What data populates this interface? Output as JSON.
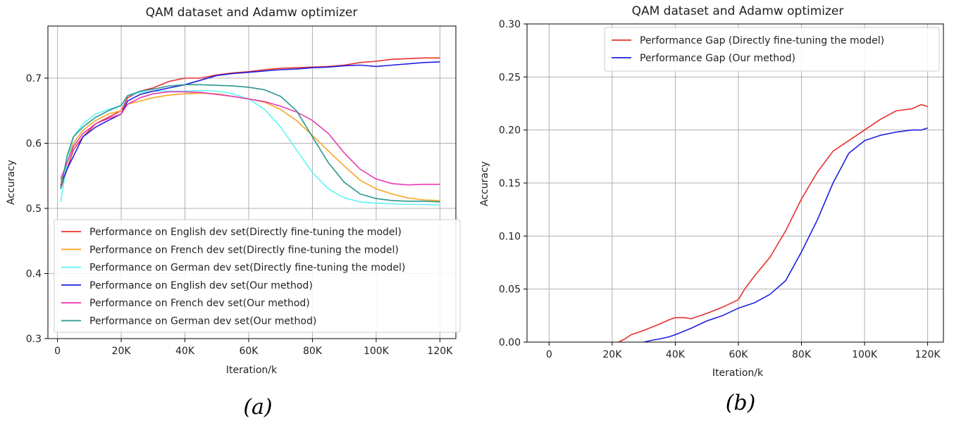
{
  "chart_data": [
    {
      "type": "line",
      "title": "QAM dataset and Adamw optimizer",
      "xlabel": "Iteration/k",
      "ylabel": "Accuracy",
      "caption": "(a)",
      "xlim": [
        -3,
        125
      ],
      "ylim": [
        0.3,
        0.78
      ],
      "xticks": [
        0,
        20,
        40,
        60,
        80,
        100,
        120
      ],
      "xtick_labels": [
        "0",
        "20K",
        "40K",
        "60K",
        "80K",
        "100K",
        "120K"
      ],
      "yticks": [
        0.3,
        0.4,
        0.5,
        0.6,
        0.7
      ],
      "ytick_labels": [
        "0.3",
        "0.4",
        "0.5",
        "0.6",
        "0.7"
      ],
      "grid": true,
      "legend_position": "lower-left",
      "series": [
        {
          "name": "Performance on English dev set(Directly fine-tuning the model)",
          "color": "#e8302e",
          "x": [
            1,
            3,
            5,
            8,
            12,
            16,
            20,
            22,
            26,
            30,
            35,
            40,
            45,
            50,
            55,
            60,
            65,
            70,
            75,
            80,
            85,
            90,
            95,
            100,
            105,
            110,
            115,
            120
          ],
          "y": [
            0.53,
            0.56,
            0.59,
            0.61,
            0.63,
            0.64,
            0.65,
            0.67,
            0.68,
            0.685,
            0.695,
            0.7,
            0.7,
            0.705,
            0.708,
            0.71,
            0.713,
            0.715,
            0.716,
            0.717,
            0.718,
            0.72,
            0.724,
            0.726,
            0.729,
            0.73,
            0.731,
            0.731
          ]
        },
        {
          "name": "Performance on French dev set(Directly fine-tuning the model)",
          "color": "#f5a623",
          "x": [
            1,
            3,
            5,
            8,
            12,
            16,
            20,
            22,
            26,
            30,
            35,
            40,
            45,
            50,
            55,
            60,
            65,
            70,
            75,
            80,
            85,
            90,
            95,
            100,
            105,
            110,
            115,
            120
          ],
          "y": [
            0.54,
            0.57,
            0.6,
            0.62,
            0.635,
            0.645,
            0.65,
            0.66,
            0.665,
            0.67,
            0.674,
            0.676,
            0.677,
            0.676,
            0.672,
            0.668,
            0.663,
            0.652,
            0.635,
            0.612,
            0.588,
            0.565,
            0.543,
            0.53,
            0.522,
            0.516,
            0.513,
            0.512
          ]
        },
        {
          "name": "Performance on German dev set(Directly fine-tuning the model)",
          "color": "#5ef5f5",
          "x": [
            1,
            3,
            5,
            8,
            12,
            16,
            20,
            22,
            26,
            30,
            35,
            40,
            45,
            50,
            55,
            60,
            65,
            70,
            75,
            80,
            85,
            90,
            95,
            100,
            105,
            110,
            115,
            120
          ],
          "y": [
            0.51,
            0.57,
            0.61,
            0.63,
            0.645,
            0.652,
            0.658,
            0.673,
            0.678,
            0.68,
            0.68,
            0.68,
            0.681,
            0.68,
            0.676,
            0.668,
            0.652,
            0.625,
            0.59,
            0.555,
            0.53,
            0.516,
            0.51,
            0.508,
            0.507,
            0.506,
            0.506,
            0.505
          ]
        },
        {
          "name": "Performance on English dev set(Our method)",
          "color": "#1f1fe0",
          "x": [
            1,
            3,
            5,
            8,
            12,
            16,
            20,
            22,
            26,
            30,
            35,
            40,
            45,
            50,
            55,
            60,
            65,
            70,
            75,
            80,
            85,
            90,
            95,
            100,
            105,
            110,
            115,
            120
          ],
          "y": [
            0.535,
            0.56,
            0.58,
            0.61,
            0.625,
            0.635,
            0.645,
            0.665,
            0.675,
            0.68,
            0.685,
            0.69,
            0.697,
            0.704,
            0.707,
            0.709,
            0.711,
            0.713,
            0.714,
            0.716,
            0.717,
            0.719,
            0.72,
            0.718,
            0.72,
            0.722,
            0.724,
            0.725
          ]
        },
        {
          "name": "Performance on French dev set(Our method)",
          "color": "#e83ab4",
          "x": [
            1,
            3,
            5,
            8,
            12,
            16,
            20,
            22,
            26,
            30,
            35,
            40,
            45,
            50,
            55,
            60,
            65,
            70,
            75,
            80,
            85,
            90,
            95,
            100,
            105,
            110,
            115,
            120
          ],
          "y": [
            0.545,
            0.57,
            0.595,
            0.615,
            0.63,
            0.638,
            0.645,
            0.66,
            0.67,
            0.676,
            0.679,
            0.679,
            0.678,
            0.675,
            0.672,
            0.668,
            0.664,
            0.657,
            0.648,
            0.635,
            0.615,
            0.585,
            0.56,
            0.545,
            0.538,
            0.536,
            0.537,
            0.537
          ]
        },
        {
          "name": "Performance on German dev set(Our method)",
          "color": "#2a9690",
          "x": [
            1,
            3,
            5,
            8,
            12,
            16,
            20,
            22,
            26,
            30,
            35,
            40,
            45,
            50,
            55,
            60,
            65,
            70,
            75,
            80,
            85,
            90,
            95,
            100,
            105,
            110,
            115,
            120
          ],
          "y": [
            0.53,
            0.58,
            0.61,
            0.625,
            0.64,
            0.65,
            0.658,
            0.673,
            0.68,
            0.683,
            0.688,
            0.69,
            0.69,
            0.689,
            0.688,
            0.686,
            0.682,
            0.672,
            0.65,
            0.61,
            0.57,
            0.54,
            0.522,
            0.515,
            0.512,
            0.511,
            0.511,
            0.51
          ]
        }
      ]
    },
    {
      "type": "line",
      "title": "QAM dataset and Adamw optimizer",
      "xlabel": "Iteration/k",
      "ylabel": "Accuracy",
      "caption": "(b)",
      "xlim": [
        -7,
        125
      ],
      "ylim": [
        0.0,
        0.3
      ],
      "xticks": [
        0,
        20,
        40,
        60,
        80,
        100,
        120
      ],
      "xtick_labels": [
        "0",
        "20K",
        "40K",
        "60K",
        "80K",
        "100K",
        "120K"
      ],
      "yticks": [
        0.0,
        0.05,
        0.1,
        0.15,
        0.2,
        0.25,
        0.3
      ],
      "ytick_labels": [
        "0.00",
        "0.05",
        "0.10",
        "0.15",
        "0.20",
        "0.25",
        "0.30"
      ],
      "grid": true,
      "legend_position": "top-right",
      "series": [
        {
          "name": "Performance Gap (Directly fine-tuning the model)",
          "color": "#e8302e",
          "x": [
            22,
            24,
            26,
            30,
            35,
            38,
            40,
            43,
            45,
            50,
            55,
            60,
            62,
            65,
            70,
            75,
            80,
            85,
            90,
            95,
            100,
            105,
            110,
            115,
            118,
            120
          ],
          "y": [
            0.0,
            0.003,
            0.007,
            0.011,
            0.017,
            0.021,
            0.023,
            0.023,
            0.022,
            0.027,
            0.033,
            0.04,
            0.05,
            0.062,
            0.08,
            0.105,
            0.135,
            0.16,
            0.18,
            0.19,
            0.2,
            0.21,
            0.218,
            0.22,
            0.224,
            0.222
          ]
        },
        {
          "name": "Performance Gap (Our method)",
          "color": "#1f1fe0",
          "x": [
            30,
            33,
            35,
            38,
            40,
            45,
            50,
            55,
            60,
            65,
            70,
            75,
            80,
            85,
            90,
            95,
            100,
            105,
            110,
            115,
            118,
            120
          ],
          "y": [
            0.0,
            0.002,
            0.003,
            0.005,
            0.007,
            0.013,
            0.02,
            0.025,
            0.032,
            0.037,
            0.045,
            0.058,
            0.085,
            0.115,
            0.15,
            0.178,
            0.19,
            0.195,
            0.198,
            0.2,
            0.2,
            0.202
          ]
        }
      ]
    }
  ]
}
